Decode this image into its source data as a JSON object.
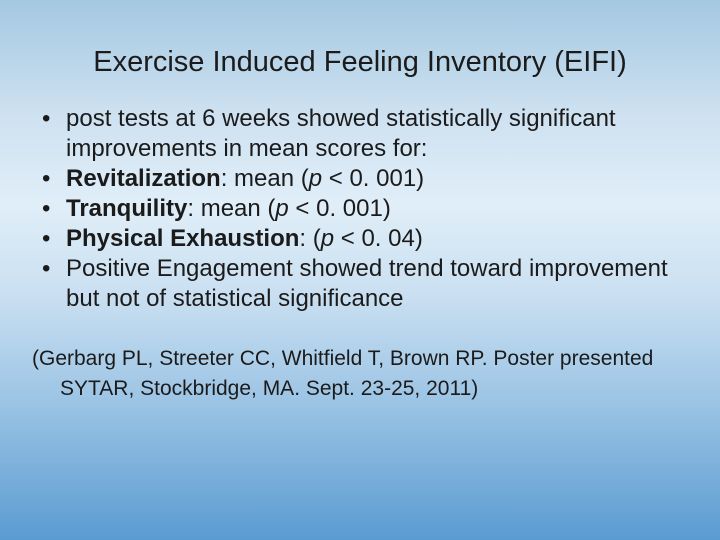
{
  "slide": {
    "title": "Exercise Induced Feeling Inventory (EIFI)",
    "bullet_char": "•",
    "bullets": [
      {
        "text": "post tests at 6 weeks showed statistically significant improvements in mean scores for:"
      },
      {
        "bold": "Revitalization",
        "mid": ": mean (",
        "p": "p",
        "tail": " < 0. 001)"
      },
      {
        "bold": "Tranquility",
        "mid": ": mean (",
        "p": "p",
        "tail": " < 0. 001)"
      },
      {
        "bold": "Physical Exhaustion",
        "mid": ": (",
        "p": "p",
        "tail": " < 0. 04)"
      },
      {
        "text": "Positive Engagement showed trend toward improvement but not of statistical significance"
      }
    ],
    "citation": "(Gerbarg PL, Streeter CC, Whitfield T, Brown RP. Poster presented SYTAR, Stockbridge, MA. Sept. 23-25, 2011)",
    "colors": {
      "text": "#1b1b1b",
      "background_top": "#a4c8e1",
      "background_middle": "#e0eef8",
      "background_bottom": "#5a9bd1"
    }
  }
}
